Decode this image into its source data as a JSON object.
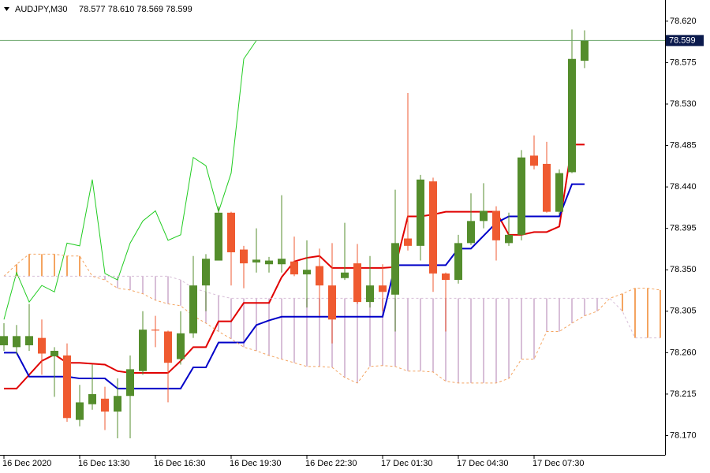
{
  "chart_data": {
    "type": "candlestick",
    "title": "AUDJPY,M30",
    "subtitle": "78.577 78.610 78.569 78.599",
    "categories": [
      "16 Dec 2020",
      null,
      null,
      null,
      null,
      null,
      "16 Dec 13:30",
      null,
      null,
      null,
      null,
      null,
      "16 Dec 16:30",
      null,
      null,
      null,
      null,
      null,
      "16 Dec 19:30",
      null,
      null,
      null,
      null,
      null,
      "16 Dec 22:30",
      null,
      null,
      null,
      null,
      null,
      "17 Dec 01:30",
      null,
      null,
      null,
      null,
      null,
      "17 Dec 04:30",
      null,
      null,
      null,
      null,
      null,
      "17 Dec 07:30",
      null,
      null,
      null,
      null,
      null,
      null,
      null,
      null,
      null,
      null
    ],
    "open": [
      78.268,
      78.266,
      78.268,
      78.276,
      78.256,
      78.257,
      78.187,
      78.204,
      78.21,
      78.196,
      78.213,
      78.24,
      78.285,
      78.283,
      78.253,
      78.281,
      78.333,
      78.36,
      78.412,
      78.372,
      78.358,
      78.356,
      78.356,
      78.359,
      78.345,
      78.354,
      78.333,
      78.341,
      78.357,
      78.315,
      78.333,
      78.323,
      78.384,
      78.376,
      78.446,
      78.346,
      78.339,
      78.379,
      78.403,
      78.414,
      78.379,
      78.388,
      78.474,
      78.465,
      78.413,
      78.456,
      78.577,
      null,
      null,
      null,
      null,
      null,
      null
    ],
    "high": [
      78.292,
      78.29,
      78.313,
      78.296,
      78.266,
      78.27,
      78.225,
      78.247,
      78.223,
      78.232,
      78.257,
      78.305,
      78.3,
      78.284,
      78.305,
      78.365,
      78.367,
      78.419,
      78.413,
      78.376,
      78.395,
      78.364,
      78.431,
      78.386,
      78.382,
      78.373,
      78.379,
      78.401,
      78.378,
      78.365,
      78.356,
      78.437,
      78.542,
      78.453,
      78.45,
      78.347,
      78.388,
      78.433,
      78.444,
      78.419,
      78.412,
      78.48,
      78.496,
      78.489,
      78.459,
      78.611,
      78.61,
      null,
      null,
      null,
      null,
      null,
      null
    ],
    "low": [
      78.262,
      78.258,
      78.262,
      78.236,
      78.212,
      78.185,
      78.18,
      78.198,
      78.176,
      78.167,
      78.167,
      78.236,
      78.266,
      78.206,
      78.247,
      78.276,
      78.305,
      78.36,
      78.333,
      78.33,
      78.347,
      78.347,
      78.347,
      78.343,
      78.309,
      78.3,
      78.27,
      78.339,
      78.313,
      78.309,
      78.305,
      78.283,
      78.371,
      78.36,
      78.326,
      78.283,
      78.335,
      78.377,
      78.395,
      78.36,
      78.376,
      78.382,
      78.459,
      78.412,
      78.41,
      78.455,
      78.569,
      null,
      null,
      null,
      null,
      null,
      null
    ],
    "close": [
      78.278,
      78.278,
      78.278,
      78.259,
      78.262,
      78.189,
      78.206,
      78.215,
      78.196,
      78.213,
      78.242,
      78.285,
      78.284,
      78.249,
      78.281,
      78.333,
      78.362,
      78.412,
      78.369,
      78.357,
      78.361,
      78.36,
      78.362,
      78.345,
      78.35,
      78.333,
      78.296,
      78.347,
      78.315,
      78.333,
      78.326,
      78.379,
      78.376,
      78.448,
      78.346,
      78.339,
      78.379,
      78.403,
      78.414,
      78.382,
      78.388,
      78.472,
      78.463,
      78.413,
      78.455,
      78.579,
      78.599,
      null,
      null,
      null,
      null,
      null,
      null
    ],
    "up_color": "#548d2c",
    "down_color": "#ef5a30",
    "price_line_color": "#6aa56a",
    "cloud": true,
    "series": [
      {
        "color": "#e00000",
        "width": 2,
        "values": [
          78.221,
          78.221,
          78.236,
          78.251,
          78.258,
          78.249,
          78.249,
          78.248,
          78.247,
          78.24,
          78.238,
          78.238,
          78.238,
          78.238,
          78.251,
          78.266,
          78.266,
          78.294,
          78.294,
          78.314,
          78.314,
          78.314,
          78.342,
          78.359,
          78.363,
          78.365,
          78.352,
          78.352,
          78.352,
          78.352,
          78.352,
          78.353,
          78.408,
          78.408,
          78.41,
          78.413,
          78.413,
          78.413,
          78.413,
          78.413,
          78.388,
          78.388,
          78.391,
          78.391,
          78.397,
          78.486,
          78.486,
          null,
          null,
          null,
          null,
          null,
          null
        ]
      },
      {
        "color": "#0000c8",
        "width": 2,
        "values": [
          78.26,
          78.26,
          78.234,
          78.234,
          78.234,
          78.234,
          78.232,
          78.232,
          78.232,
          78.221,
          78.221,
          78.221,
          78.221,
          78.221,
          78.221,
          78.244,
          78.244,
          78.271,
          78.271,
          78.271,
          78.29,
          78.295,
          78.299,
          78.299,
          78.299,
          78.299,
          78.299,
          78.299,
          78.299,
          78.299,
          78.299,
          78.355,
          78.355,
          78.355,
          78.355,
          78.355,
          78.373,
          78.373,
          78.387,
          78.401,
          78.408,
          78.408,
          78.408,
          78.408,
          78.408,
          78.443,
          78.443,
          null,
          null,
          null,
          null,
          null,
          null
        ]
      },
      {
        "color": "#22cc22",
        "width": 1,
        "values": [
          78.296,
          78.347,
          78.315,
          78.333,
          78.326,
          78.379,
          78.376,
          78.448,
          78.346,
          78.339,
          78.379,
          78.403,
          78.414,
          78.382,
          78.388,
          78.472,
          78.463,
          78.413,
          78.455,
          78.579,
          78.599,
          null,
          null,
          null,
          null,
          null,
          null,
          null,
          null,
          null,
          null,
          null,
          null,
          null,
          null,
          null,
          null,
          null,
          null,
          null,
          null,
          null,
          null,
          null,
          null,
          null,
          null,
          null,
          null,
          null,
          null,
          null,
          null
        ]
      },
      {
        "color": "#f4a460",
        "width": 1,
        "style": "dashed",
        "values": [
          78.343,
          78.356,
          78.367,
          78.367,
          78.367,
          78.365,
          78.365,
          78.343,
          78.339,
          78.33,
          78.328,
          78.324,
          78.317,
          78.313,
          78.311,
          78.3,
          78.292,
          78.283,
          78.275,
          78.266,
          78.262,
          78.257,
          78.253,
          78.249,
          78.245,
          78.245,
          78.244,
          78.233,
          78.227,
          78.245,
          78.246,
          78.245,
          78.24,
          78.24,
          78.239,
          78.229,
          78.227,
          78.227,
          78.227,
          78.227,
          78.232,
          78.253,
          78.253,
          78.283,
          78.283,
          78.292,
          78.3,
          78.305,
          78.319,
          78.324,
          78.33,
          78.33,
          78.328
        ]
      },
      {
        "color": "#d8bfd8",
        "width": 1,
        "style": "dashed",
        "values": [
          78.343,
          78.343,
          78.343,
          78.343,
          78.343,
          78.343,
          78.343,
          78.343,
          78.343,
          78.343,
          78.343,
          78.343,
          78.343,
          78.343,
          78.339,
          78.33,
          78.326,
          78.322,
          78.319,
          78.319,
          78.319,
          78.319,
          78.319,
          78.319,
          78.319,
          78.319,
          78.319,
          78.319,
          78.319,
          78.319,
          78.319,
          78.319,
          78.319,
          78.319,
          78.319,
          78.319,
          78.319,
          78.319,
          78.319,
          78.319,
          78.319,
          78.319,
          78.319,
          78.319,
          78.319,
          78.319,
          78.319,
          78.319,
          78.319,
          78.305,
          78.276,
          78.276,
          78.276
        ]
      }
    ],
    "ylim": [
      78.149,
      78.643
    ],
    "yticks": [
      {
        "value": 78.62,
        "label": "78.620"
      },
      78.575,
      {
        "value": 78.53,
        "label": "78.530"
      },
      78.485,
      {
        "value": 78.44,
        "label": "78.440"
      },
      78.395,
      {
        "value": 78.35,
        "label": "78.350"
      },
      78.305,
      {
        "value": 78.26,
        "label": "78.260"
      },
      78.215,
      {
        "value": 78.17,
        "label": "78.170"
      }
    ]
  }
}
